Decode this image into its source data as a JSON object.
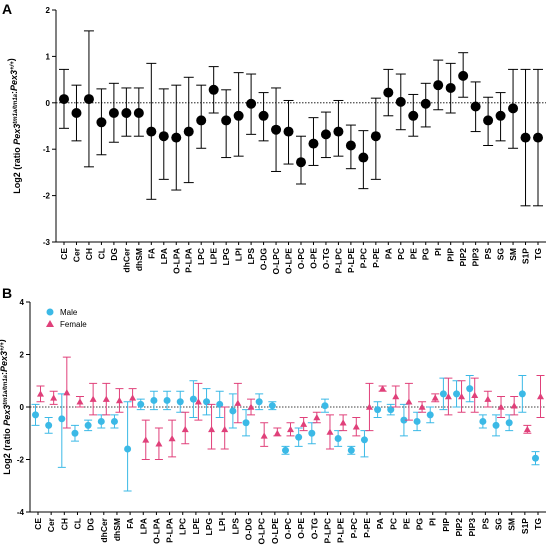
{
  "chart_data": [
    {
      "type": "scatter",
      "panel_label": "A",
      "ylabel": "Log2 (ratio Pex3^{tm1a/tm1a}:Pex3^{+/+})",
      "ylim": [
        -3,
        2
      ],
      "yticks": [
        -3,
        -2,
        -1,
        0,
        1,
        2
      ],
      "grid": false,
      "reference_line": 0,
      "categories": [
        "CE",
        "Cer",
        "CH",
        "CL",
        "DG",
        "dhCer",
        "dhSM",
        "FA",
        "LPA",
        "O-LPA",
        "P-LPA",
        "LPC",
        "LPE",
        "LPG",
        "LPI",
        "LPS",
        "O-DG",
        "O-LPC",
        "O-LPE",
        "O-PC",
        "O-PE",
        "O-TG",
        "P-LPC",
        "P-LPE",
        "P-PC",
        "P-PE",
        "PA",
        "PC",
        "PE",
        "PG",
        "PI",
        "PIP",
        "PIP2",
        "PIP3",
        "PS",
        "SG",
        "SM",
        "S1P",
        "TG"
      ],
      "series": [
        {
          "color": "#000000",
          "values": [
            0.08,
            -0.22,
            0.08,
            -0.42,
            -0.22,
            -0.22,
            -0.22,
            -0.62,
            -0.72,
            -0.75,
            -0.62,
            -0.38,
            0.28,
            -0.38,
            -0.28,
            -0.02,
            -0.28,
            -0.58,
            -0.62,
            -1.28,
            -0.88,
            -0.68,
            -0.62,
            -0.92,
            -1.18,
            -0.72,
            0.22,
            0.02,
            -0.28,
            -0.02,
            0.38,
            0.32,
            0.58,
            -0.08,
            -0.38,
            -0.28,
            -0.12,
            -0.75,
            -0.75
          ],
          "err_upper": [
            0.72,
            0.38,
            1.55,
            0.3,
            0.42,
            0.32,
            0.32,
            0.85,
            0.3,
            0.38,
            0.55,
            0.38,
            0.78,
            0.28,
            0.65,
            0.62,
            0.22,
            0.32,
            0.05,
            -0.72,
            -0.32,
            -0.2,
            0.05,
            -0.48,
            -0.6,
            0.1,
            0.72,
            0.62,
            0.18,
            0.42,
            0.92,
            0.85,
            1.08,
            0.45,
            0.12,
            0.22,
            0.72,
            0.72,
            0.72
          ],
          "err_lower": [
            -0.55,
            -0.82,
            -1.38,
            -1.12,
            -0.85,
            -0.72,
            -0.72,
            -2.08,
            -1.65,
            -1.88,
            -1.72,
            -0.98,
            -0.22,
            -1.18,
            -1.15,
            -0.68,
            -0.82,
            -1.48,
            -1.32,
            -1.75,
            -1.35,
            -1.18,
            -1.15,
            -1.42,
            -1.85,
            -1.65,
            -0.28,
            -0.58,
            -0.72,
            -0.52,
            -0.15,
            -0.22,
            0.12,
            -0.62,
            -0.92,
            -0.82,
            -0.98,
            -2.22,
            -2.22
          ]
        }
      ]
    },
    {
      "type": "scatter",
      "panel_label": "B",
      "ylabel": "Log2 (ratio Pex3^{tm1a/tm1a}:Pex3^{+/+})",
      "ylim": [
        -4,
        4
      ],
      "yticks": [
        -4,
        -2,
        0,
        2,
        4
      ],
      "grid": false,
      "legend_position": "top-left",
      "reference_line": 0,
      "categories": [
        "CE",
        "Cer",
        "CH",
        "CL",
        "DG",
        "dhCer",
        "dhSM",
        "FA",
        "LPA",
        "O-LPA",
        "P-LPA",
        "LPC",
        "LPE",
        "LPG",
        "LPI",
        "LPS",
        "O-DG",
        "O-LPC",
        "O-LPE",
        "O-PC",
        "O-PE",
        "O-TG",
        "P-LPC",
        "P-LPE",
        "P-PC",
        "P-PE",
        "PA",
        "PC",
        "PE",
        "PG",
        "PI",
        "PIP",
        "PIP2",
        "PIP3",
        "PS",
        "SG",
        "SM",
        "S1P",
        "TG"
      ],
      "series": [
        {
          "name": "Male",
          "color": "#3bb9e6",
          "marker": "circle",
          "values": [
            -0.3,
            -0.7,
            -0.45,
            -1.0,
            -0.7,
            -0.55,
            -0.55,
            -1.6,
            0.1,
            0.25,
            0.25,
            0.2,
            0.3,
            0.2,
            0.1,
            -0.15,
            -0.6,
            0.2,
            0.05,
            -1.65,
            -1.15,
            -1.0,
            0.05,
            -1.2,
            -1.65,
            -1.25,
            -0.1,
            -0.1,
            -0.5,
            -0.55,
            -0.3,
            0.5,
            0.5,
            0.7,
            -0.55,
            -0.7,
            -0.6,
            0.5,
            -1.95
          ],
          "err_upper": [
            0.1,
            -0.4,
            0.5,
            -0.7,
            -0.5,
            -0.3,
            -0.3,
            0.2,
            0.3,
            0.6,
            0.6,
            0.6,
            1.0,
            0.7,
            0.6,
            0.5,
            -0.1,
            0.5,
            0.2,
            -1.5,
            -0.8,
            -0.6,
            0.3,
            -0.9,
            -1.5,
            -0.9,
            0.2,
            0.1,
            0.1,
            -0.2,
            0.0,
            1.1,
            1.0,
            1.2,
            -0.3,
            -0.3,
            -0.3,
            1.2,
            -1.7
          ],
          "err_lower": [
            -0.7,
            -1.0,
            -2.3,
            -1.3,
            -0.9,
            -0.8,
            -0.8,
            -3.2,
            -0.1,
            -0.1,
            -0.1,
            -0.2,
            -0.4,
            -0.3,
            -0.4,
            -0.8,
            -1.1,
            -0.1,
            -0.1,
            -1.8,
            -1.5,
            -1.4,
            -0.2,
            -1.5,
            -1.8,
            -1.9,
            -0.4,
            -0.3,
            -1.1,
            -0.9,
            -0.6,
            -0.1,
            0.0,
            0.2,
            -0.8,
            -1.1,
            -0.9,
            -0.2,
            -2.2
          ]
        },
        {
          "name": "Female",
          "color": "#e0407a",
          "marker": "triangle",
          "values": [
            0.5,
            0.35,
            0.55,
            0.2,
            0.3,
            0.3,
            0.25,
            0.35,
            -1.25,
            -1.4,
            -1.2,
            -0.85,
            0.2,
            -0.85,
            -0.85,
            0.15,
            0.0,
            -1.1,
            -1.0,
            -0.85,
            -0.65,
            -0.4,
            -0.95,
            -0.6,
            -0.75,
            0.0,
            0.7,
            0.4,
            0.2,
            0.0,
            0.35,
            0.4,
            0.4,
            0.45,
            0.3,
            0.0,
            0.05,
            -0.85,
            0.4
          ],
          "err_upper": [
            0.8,
            0.6,
            1.9,
            0.4,
            0.9,
            0.9,
            0.7,
            0.7,
            -0.5,
            -0.8,
            -0.5,
            -0.2,
            0.9,
            0.1,
            0.0,
            0.9,
            0.3,
            -0.6,
            -0.8,
            -0.6,
            -0.4,
            -0.2,
            -0.3,
            -0.3,
            -0.4,
            0.9,
            0.8,
            0.8,
            0.9,
            0.2,
            0.5,
            1.1,
            1.0,
            1.1,
            0.6,
            0.4,
            0.4,
            -0.7,
            1.2
          ],
          "err_lower": [
            0.2,
            0.1,
            -0.8,
            0.0,
            -0.3,
            -0.3,
            -0.2,
            0.0,
            -2.0,
            -2.0,
            -1.9,
            -1.4,
            -0.5,
            -1.6,
            -1.6,
            -0.6,
            -0.3,
            -1.5,
            -1.1,
            -1.1,
            -0.9,
            -0.6,
            -1.6,
            -0.9,
            -1.1,
            -0.9,
            0.6,
            0.0,
            -0.5,
            -0.2,
            0.2,
            -0.3,
            -0.2,
            -0.2,
            0.0,
            -0.4,
            -0.3,
            -1.0,
            -0.4
          ]
        }
      ]
    }
  ]
}
